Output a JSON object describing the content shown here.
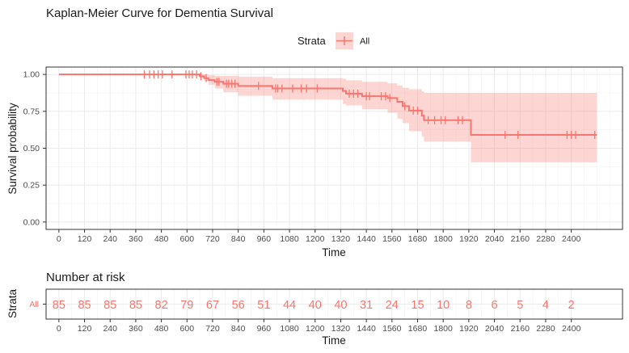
{
  "chart_data": {
    "type": "line",
    "title": "Kaplan-Meier Curve for Dementia Survival",
    "xlabel": "Time",
    "ylabel": "Survival probability",
    "xlim": [
      -60,
      2640
    ],
    "ylim": [
      -0.05,
      1.05
    ],
    "x_ticks": [
      0,
      120,
      240,
      360,
      480,
      600,
      720,
      840,
      960,
      1080,
      1200,
      1320,
      1440,
      1560,
      1680,
      1800,
      1920,
      2040,
      2160,
      2280,
      2400
    ],
    "y_ticks": [
      0,
      0.25,
      0.5,
      0.75,
      1
    ],
    "y_tick_labels": [
      "0.00",
      "0.25",
      "0.50",
      "0.75",
      "1.00"
    ],
    "grid": true,
    "legend": {
      "title": "Strata",
      "placement": "top",
      "entries": [
        "All"
      ]
    },
    "series": [
      {
        "name": "All",
        "color": "#F8766D",
        "steps": [
          {
            "x": 0,
            "y": 1.0
          },
          {
            "x": 660,
            "y": 0.988
          },
          {
            "x": 680,
            "y": 0.975
          },
          {
            "x": 700,
            "y": 0.962
          },
          {
            "x": 730,
            "y": 0.95
          },
          {
            "x": 770,
            "y": 0.937
          },
          {
            "x": 840,
            "y": 0.922
          },
          {
            "x": 1000,
            "y": 0.905
          },
          {
            "x": 1330,
            "y": 0.888
          },
          {
            "x": 1345,
            "y": 0.87
          },
          {
            "x": 1420,
            "y": 0.852
          },
          {
            "x": 1540,
            "y": 0.84
          },
          {
            "x": 1585,
            "y": 0.815
          },
          {
            "x": 1610,
            "y": 0.785
          },
          {
            "x": 1640,
            "y": 0.755
          },
          {
            "x": 1700,
            "y": 0.72
          },
          {
            "x": 1710,
            "y": 0.69
          },
          {
            "x": 1930,
            "y": 0.59
          },
          {
            "x": 2520,
            "y": 0.59
          }
        ],
        "ci_lower": [
          {
            "x": 0,
            "y": 1.0
          },
          {
            "x": 660,
            "y": 0.975
          },
          {
            "x": 680,
            "y": 0.955
          },
          {
            "x": 700,
            "y": 0.93
          },
          {
            "x": 730,
            "y": 0.905
          },
          {
            "x": 770,
            "y": 0.88
          },
          {
            "x": 840,
            "y": 0.855
          },
          {
            "x": 1000,
            "y": 0.83
          },
          {
            "x": 1330,
            "y": 0.8
          },
          {
            "x": 1345,
            "y": 0.79
          },
          {
            "x": 1420,
            "y": 0.765
          },
          {
            "x": 1540,
            "y": 0.74
          },
          {
            "x": 1585,
            "y": 0.7
          },
          {
            "x": 1610,
            "y": 0.67
          },
          {
            "x": 1640,
            "y": 0.615
          },
          {
            "x": 1700,
            "y": 0.58
          },
          {
            "x": 1710,
            "y": 0.545
          },
          {
            "x": 1930,
            "y": 0.405
          },
          {
            "x": 2520,
            "y": 0.405
          }
        ],
        "ci_upper": [
          {
            "x": 0,
            "y": 1.0
          },
          {
            "x": 660,
            "y": 1.0
          },
          {
            "x": 680,
            "y": 1.0
          },
          {
            "x": 700,
            "y": 0.995
          },
          {
            "x": 730,
            "y": 0.99
          },
          {
            "x": 770,
            "y": 0.99
          },
          {
            "x": 840,
            "y": 0.985
          },
          {
            "x": 1000,
            "y": 0.975
          },
          {
            "x": 1330,
            "y": 0.97
          },
          {
            "x": 1345,
            "y": 0.96
          },
          {
            "x": 1420,
            "y": 0.95
          },
          {
            "x": 1540,
            "y": 0.94
          },
          {
            "x": 1585,
            "y": 0.925
          },
          {
            "x": 1610,
            "y": 0.91
          },
          {
            "x": 1640,
            "y": 0.9
          },
          {
            "x": 1700,
            "y": 0.885
          },
          {
            "x": 1710,
            "y": 0.875
          },
          {
            "x": 1930,
            "y": 0.875
          },
          {
            "x": 2520,
            "y": 0.875
          }
        ],
        "censored": [
          {
            "x": 400,
            "y": 1.0
          },
          {
            "x": 425,
            "y": 1.0
          },
          {
            "x": 445,
            "y": 1.0
          },
          {
            "x": 465,
            "y": 1.0
          },
          {
            "x": 485,
            "y": 1.0
          },
          {
            "x": 530,
            "y": 1.0
          },
          {
            "x": 595,
            "y": 1.0
          },
          {
            "x": 610,
            "y": 1.0
          },
          {
            "x": 625,
            "y": 1.0
          },
          {
            "x": 645,
            "y": 1.0
          },
          {
            "x": 665,
            "y": 0.988
          },
          {
            "x": 690,
            "y": 0.975
          },
          {
            "x": 740,
            "y": 0.95
          },
          {
            "x": 750,
            "y": 0.95
          },
          {
            "x": 785,
            "y": 0.937
          },
          {
            "x": 795,
            "y": 0.937
          },
          {
            "x": 810,
            "y": 0.937
          },
          {
            "x": 825,
            "y": 0.937
          },
          {
            "x": 935,
            "y": 0.922
          },
          {
            "x": 1015,
            "y": 0.905
          },
          {
            "x": 1025,
            "y": 0.905
          },
          {
            "x": 1045,
            "y": 0.905
          },
          {
            "x": 1095,
            "y": 0.905
          },
          {
            "x": 1135,
            "y": 0.905
          },
          {
            "x": 1160,
            "y": 0.905
          },
          {
            "x": 1210,
            "y": 0.905
          },
          {
            "x": 1360,
            "y": 0.87
          },
          {
            "x": 1380,
            "y": 0.87
          },
          {
            "x": 1400,
            "y": 0.87
          },
          {
            "x": 1440,
            "y": 0.852
          },
          {
            "x": 1455,
            "y": 0.852
          },
          {
            "x": 1510,
            "y": 0.852
          },
          {
            "x": 1530,
            "y": 0.852
          },
          {
            "x": 1550,
            "y": 0.84
          },
          {
            "x": 1620,
            "y": 0.785
          },
          {
            "x": 1660,
            "y": 0.755
          },
          {
            "x": 1680,
            "y": 0.755
          },
          {
            "x": 1730,
            "y": 0.69
          },
          {
            "x": 1760,
            "y": 0.69
          },
          {
            "x": 1790,
            "y": 0.69
          },
          {
            "x": 1810,
            "y": 0.69
          },
          {
            "x": 1870,
            "y": 0.69
          },
          {
            "x": 1890,
            "y": 0.69
          },
          {
            "x": 2090,
            "y": 0.59
          },
          {
            "x": 2150,
            "y": 0.59
          },
          {
            "x": 2380,
            "y": 0.59
          },
          {
            "x": 2400,
            "y": 0.59
          },
          {
            "x": 2420,
            "y": 0.59
          },
          {
            "x": 2510,
            "y": 0.59
          }
        ]
      }
    ],
    "risk_table": {
      "title": "Number at risk",
      "ylabel": "Strata",
      "xlabel": "Time",
      "strata_label": "All",
      "times": [
        0,
        120,
        240,
        360,
        480,
        600,
        720,
        840,
        960,
        1080,
        1200,
        1320,
        1440,
        1560,
        1680,
        1800,
        1920,
        2040,
        2160,
        2280,
        2400
      ],
      "counts": [
        85,
        85,
        85,
        85,
        82,
        79,
        67,
        56,
        51,
        44,
        40,
        40,
        31,
        24,
        15,
        10,
        8,
        6,
        5,
        4,
        2
      ]
    }
  }
}
